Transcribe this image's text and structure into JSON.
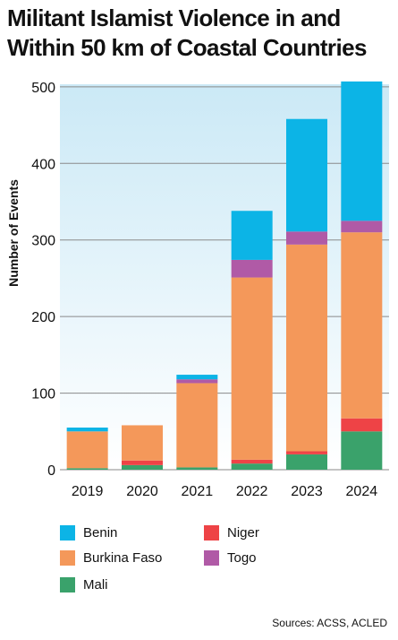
{
  "title_lines": [
    "Militant Islamist Violence in and",
    "Within 50 km of Coastal Countries"
  ],
  "source": "Sources: ACSS, ACLED",
  "chart_data": {
    "type": "bar",
    "stacked": true,
    "title": "Militant Islamist Violence in and Within 50 km of Coastal Countries",
    "xlabel": "",
    "ylabel": "Number of Events",
    "ylim": [
      0,
      510
    ],
    "yticks": [
      0,
      100,
      200,
      300,
      400,
      500
    ],
    "grid": true,
    "legend_position": "bottom",
    "categories": [
      "2019",
      "2020",
      "2021",
      "2022",
      "2023",
      "2024"
    ],
    "series": [
      {
        "name": "Mali",
        "color": "#3aa26b",
        "values": [
          2,
          6,
          3,
          8,
          20,
          50
        ]
      },
      {
        "name": "Niger",
        "color": "#ee4346",
        "values": [
          0,
          6,
          0,
          5,
          4,
          17
        ]
      },
      {
        "name": "Burkina Faso",
        "color": "#f4985a",
        "values": [
          48,
          46,
          110,
          238,
          270,
          243
        ]
      },
      {
        "name": "Togo",
        "color": "#b05aa6",
        "values": [
          0,
          0,
          5,
          23,
          17,
          15
        ]
      },
      {
        "name": "Benin",
        "color": "#0cb4e6",
        "values": [
          5,
          0,
          6,
          64,
          147,
          182
        ]
      }
    ]
  },
  "legend": [
    {
      "name": "Benin",
      "color": "#0cb4e6"
    },
    {
      "name": "Niger",
      "color": "#ee4346"
    },
    {
      "name": "Burkina Faso",
      "color": "#f4985a"
    },
    {
      "name": "Togo",
      "color": "#b05aa6"
    },
    {
      "name": "Mali",
      "color": "#3aa26b"
    }
  ]
}
